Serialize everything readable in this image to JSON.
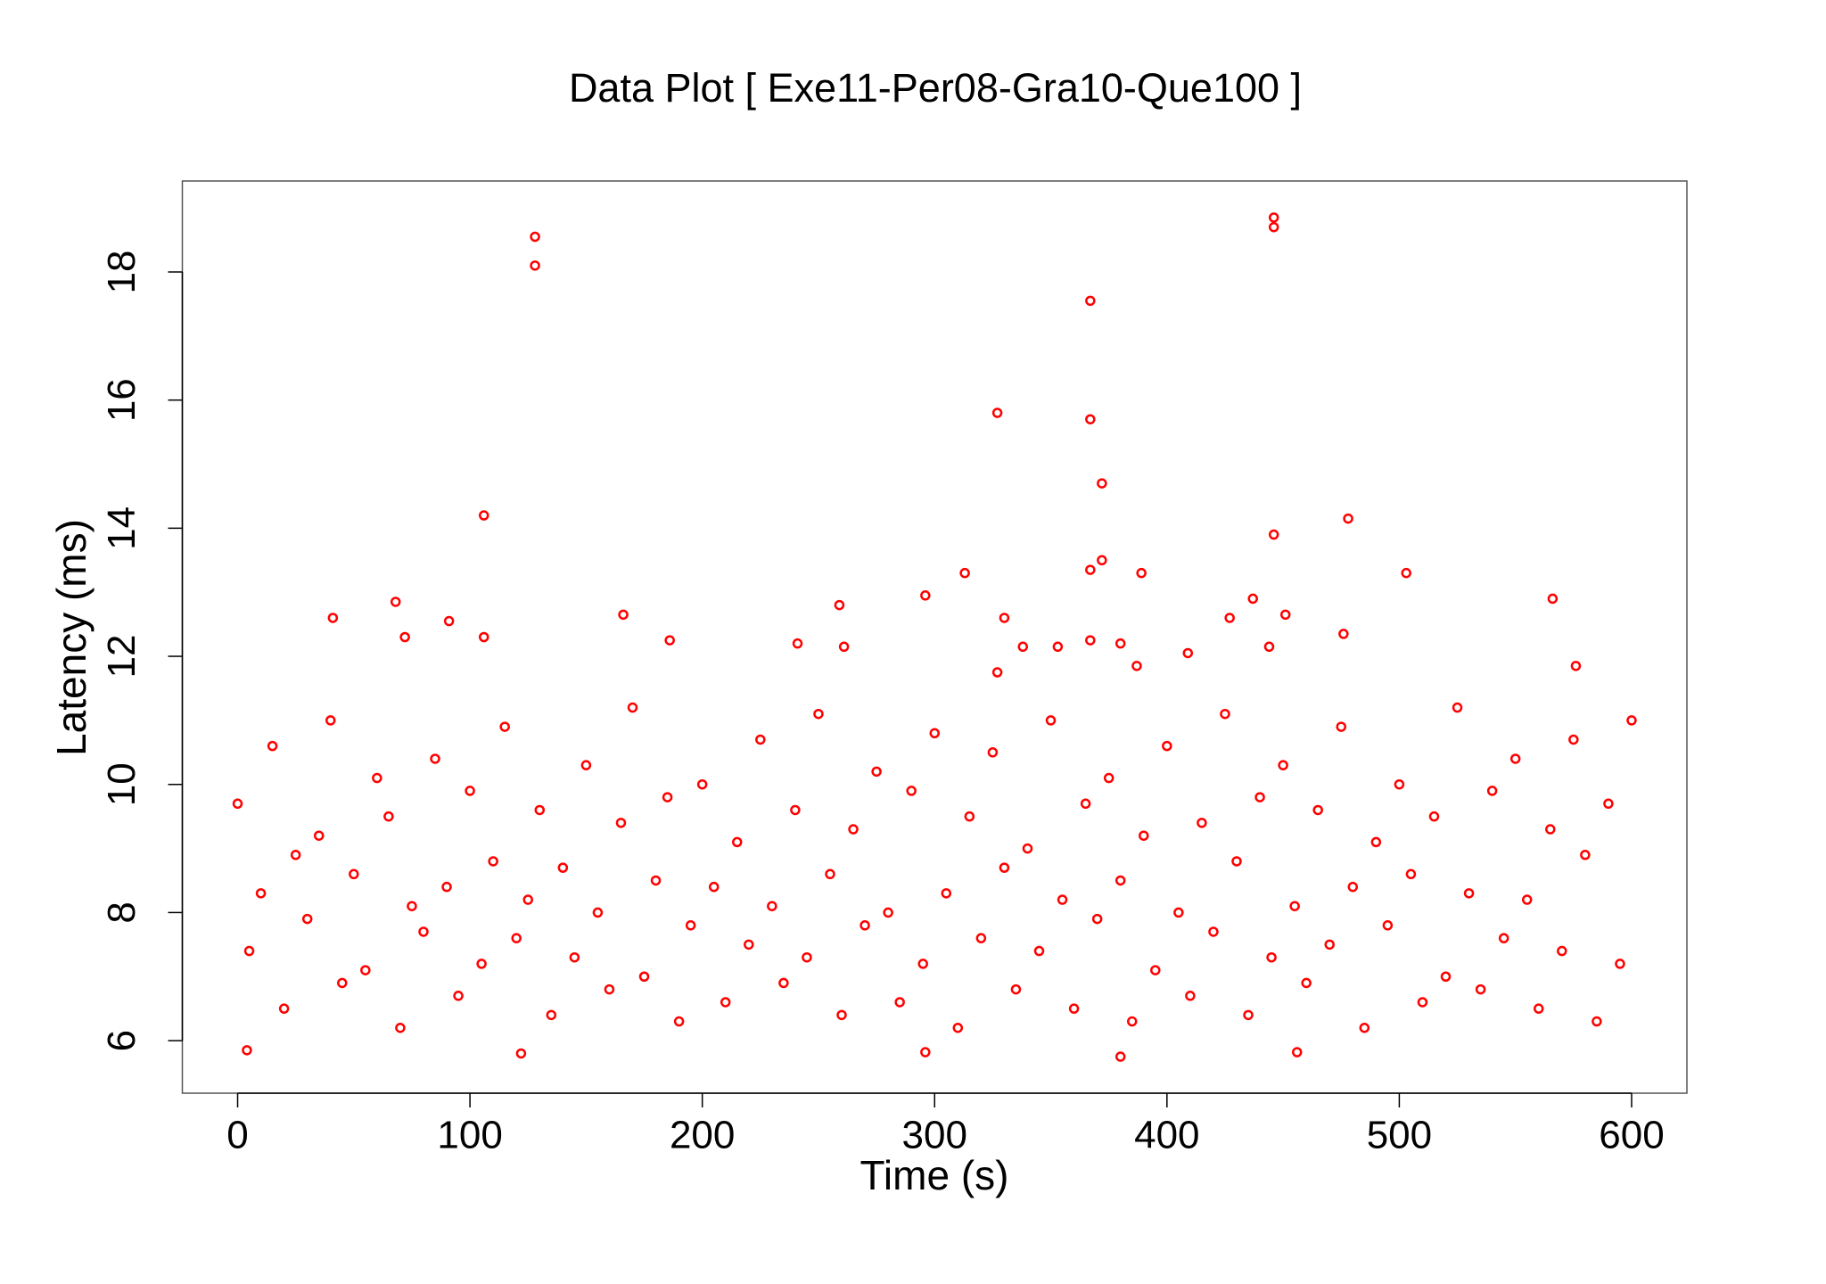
{
  "chart_data": {
    "type": "scatter",
    "title": "Data Plot [ Exe11-Per08-Gra10-Que100 ]",
    "x_label": "Time (s)",
    "y_label": "Latency (ms)",
    "xlim": [
      -23.8,
      623.8
    ],
    "ylim": [
      5.18,
      19.42
    ],
    "xticks": [
      0,
      100,
      200,
      300,
      400,
      500,
      600
    ],
    "yticks": [
      6,
      8,
      10,
      12,
      14,
      16,
      18
    ],
    "grid": false,
    "x": [
      0,
      5,
      10,
      15,
      20,
      25,
      30,
      35,
      40,
      45,
      50,
      55,
      60,
      65,
      70,
      75,
      80,
      85,
      90,
      95,
      100,
      105,
      110,
      115,
      120,
      125,
      130,
      135,
      140,
      145,
      150,
      155,
      160,
      165,
      170,
      175,
      180,
      185,
      190,
      195,
      200,
      205,
      210,
      215,
      220,
      225,
      230,
      235,
      240,
      245,
      250,
      255,
      260,
      265,
      270,
      275,
      280,
      285,
      290,
      295,
      300,
      305,
      310,
      315,
      320,
      325,
      330,
      335,
      340,
      345,
      350,
      355,
      360,
      365,
      370,
      375,
      380,
      385,
      390,
      395,
      400,
      405,
      410,
      415,
      420,
      425,
      430,
      435,
      440,
      445,
      450,
      455,
      460,
      465,
      470,
      475,
      480,
      485,
      490,
      495,
      500,
      505,
      510,
      515,
      520,
      525,
      530,
      535,
      540,
      545,
      550,
      555,
      560,
      565,
      570,
      575,
      580,
      585,
      590,
      595,
      600,
      128,
      128,
      446,
      446,
      367,
      327,
      367,
      372,
      106,
      478,
      446,
      372,
      367,
      313,
      389,
      503,
      296,
      68,
      259,
      566,
      437,
      41,
      166,
      330,
      427,
      451,
      91,
      72,
      106,
      476,
      186,
      241,
      261,
      338,
      353,
      367,
      380,
      444,
      409,
      327,
      576,
      387,
      122,
      380,
      4,
      456,
      296
    ],
    "series": [
      {
        "color": "#ff0000",
        "values": [
          9.7,
          7.4,
          8.3,
          10.6,
          6.5,
          8.9,
          7.9,
          9.2,
          11.0,
          6.9,
          8.6,
          7.1,
          10.1,
          9.5,
          6.2,
          8.1,
          7.7,
          10.4,
          8.4,
          6.7,
          9.9,
          7.2,
          8.8,
          10.9,
          7.6,
          8.2,
          9.6,
          6.4,
          8.7,
          7.3,
          10.3,
          8.0,
          6.8,
          9.4,
          11.2,
          7.0,
          8.5,
          9.8,
          6.3,
          7.8,
          10.0,
          8.4,
          6.6,
          9.1,
          7.5,
          10.7,
          8.1,
          6.9,
          9.6,
          7.3,
          11.1,
          8.6,
          6.4,
          9.3,
          7.8,
          10.2,
          8.0,
          6.6,
          9.9,
          7.2,
          10.8,
          8.3,
          6.2,
          9.5,
          7.6,
          10.5,
          8.7,
          6.8,
          9.0,
          7.4,
          11.0,
          8.2,
          6.5,
          9.7,
          7.9,
          10.1,
          8.5,
          6.3,
          9.2,
          7.1,
          10.6,
          8.0,
          6.7,
          9.4,
          7.7,
          11.1,
          8.8,
          6.4,
          9.8,
          7.3,
          10.3,
          8.1,
          6.9,
          9.6,
          7.5,
          10.9,
          8.4,
          6.2,
          9.1,
          7.8,
          10.0,
          8.6,
          6.6,
          9.5,
          7.0,
          11.2,
          8.3,
          6.8,
          9.9,
          7.6,
          10.4,
          8.2,
          6.5,
          9.3,
          7.4,
          10.7,
          8.9,
          6.3,
          9.7,
          7.2,
          11.0,
          18.55,
          18.1,
          18.85,
          18.7,
          17.55,
          15.8,
          15.7,
          14.7,
          14.2,
          14.15,
          13.9,
          13.5,
          13.35,
          13.3,
          13.3,
          13.3,
          12.95,
          12.85,
          12.8,
          12.9,
          12.9,
          12.6,
          12.65,
          12.6,
          12.6,
          12.65,
          12.55,
          12.3,
          12.3,
          12.35,
          12.25,
          12.2,
          12.15,
          12.15,
          12.15,
          12.25,
          12.2,
          12.15,
          12.05,
          11.75,
          11.85,
          11.85,
          5.8,
          5.75,
          5.85,
          5.82,
          5.82
        ]
      }
    ]
  }
}
